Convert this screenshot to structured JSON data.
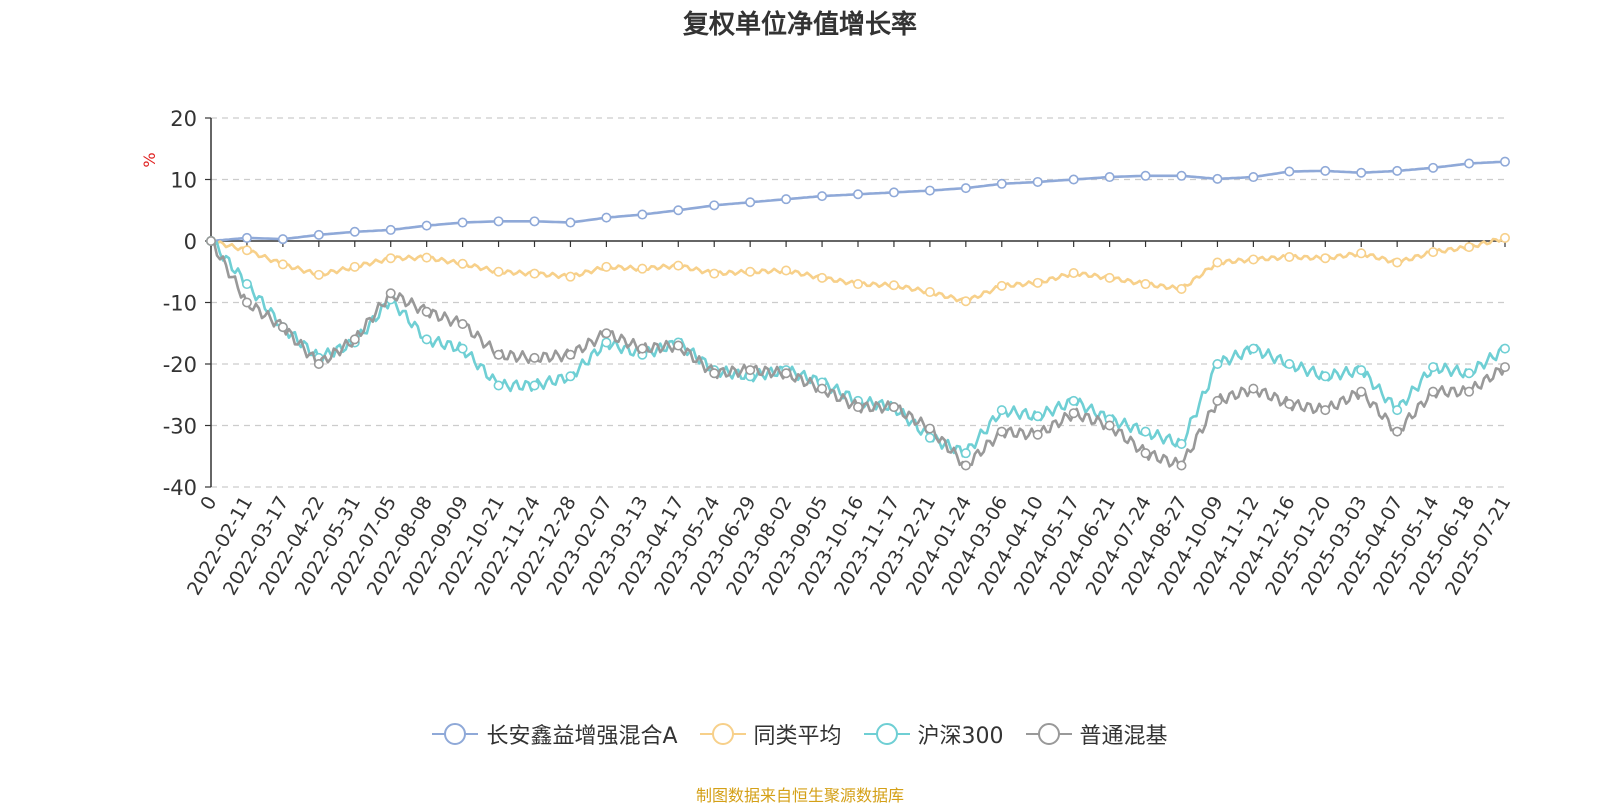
{
  "chart_data": {
    "type": "line",
    "title": "复权单位净值增长率",
    "ylabel": "%",
    "ylim": [
      -40,
      20
    ],
    "yticks": [
      20,
      10,
      0,
      -10,
      -20,
      -30,
      -40
    ],
    "grid": true,
    "legend_position": "bottom",
    "x_ticks": [
      "0",
      "2022-02-11",
      "2022-03-17",
      "2022-04-22",
      "2022-05-31",
      "2022-07-05",
      "2022-08-08",
      "2022-09-09",
      "2022-10-21",
      "2022-11-24",
      "2022-12-28",
      "2023-02-07",
      "2023-03-13",
      "2023-04-17",
      "2023-05-24",
      "2023-06-29",
      "2023-08-02",
      "2023-09-05",
      "2023-10-16",
      "2023-11-17",
      "2023-12-21",
      "2024-01-24",
      "2024-03-06",
      "2024-04-10",
      "2024-05-17",
      "2024-06-21",
      "2024-07-24",
      "2024-08-27",
      "2024-10-09",
      "2024-11-12",
      "2024-12-16",
      "2025-01-20",
      "2025-03-03",
      "2025-04-07",
      "2025-05-14",
      "2025-06-18",
      "2025-07-21"
    ],
    "series": [
      {
        "name": "长安鑫益增强混合A",
        "color": "#8fa9d8",
        "values": [
          0,
          0.5,
          0.3,
          1.0,
          1.5,
          1.8,
          2.5,
          3.0,
          3.2,
          3.2,
          3.0,
          3.8,
          4.3,
          5.0,
          5.8,
          6.3,
          6.8,
          7.3,
          7.6,
          7.9,
          8.2,
          8.6,
          9.3,
          9.6,
          10.0,
          10.4,
          10.6,
          10.6,
          10.1,
          10.4,
          11.3,
          11.4,
          11.1,
          11.4,
          11.9,
          12.6,
          12.9
        ]
      },
      {
        "name": "同类平均",
        "color": "#f7d08a",
        "values": [
          0,
          -1.5,
          -3.8,
          -5.5,
          -4.2,
          -2.8,
          -2.7,
          -3.7,
          -5.0,
          -5.3,
          -5.8,
          -4.2,
          -4.5,
          -4.0,
          -5.3,
          -5.0,
          -4.8,
          -6.0,
          -7.0,
          -7.2,
          -8.3,
          -9.8,
          -7.3,
          -6.8,
          -5.2,
          -6.0,
          -7.0,
          -7.8,
          -3.5,
          -3.0,
          -2.6,
          -2.8,
          -2.0,
          -3.5,
          -1.8,
          -1.0,
          0.5
        ]
      },
      {
        "name": "沪深300",
        "color": "#6fcfd4",
        "values": [
          0,
          -7.0,
          -14.0,
          -19.0,
          -16.5,
          -9.5,
          -16.0,
          -17.5,
          -23.5,
          -23.5,
          -22.0,
          -16.5,
          -18.5,
          -16.5,
          -21.0,
          -22.0,
          -21.0,
          -23.0,
          -26.0,
          -27.0,
          -32.0,
          -34.5,
          -27.5,
          -28.5,
          -26.0,
          -29.0,
          -31.0,
          -33.0,
          -20.0,
          -17.5,
          -20.0,
          -22.0,
          -21.0,
          -27.5,
          -20.5,
          -21.5,
          -17.5
        ]
      },
      {
        "name": "普通混基",
        "color": "#999999",
        "values": [
          0,
          -10.0,
          -14.0,
          -20.0,
          -16.0,
          -8.5,
          -11.5,
          -13.5,
          -18.5,
          -19.0,
          -18.5,
          -15.0,
          -17.5,
          -17.0,
          -21.5,
          -21.0,
          -21.5,
          -24.0,
          -27.0,
          -27.0,
          -30.5,
          -36.5,
          -31.0,
          -31.5,
          -28.0,
          -30.0,
          -34.5,
          -36.5,
          -26.0,
          -24.0,
          -26.5,
          -27.5,
          -24.5,
          -31.0,
          -24.5,
          -24.5,
          -20.5
        ]
      }
    ]
  },
  "source_text": "制图数据来自恒生聚源数据库"
}
